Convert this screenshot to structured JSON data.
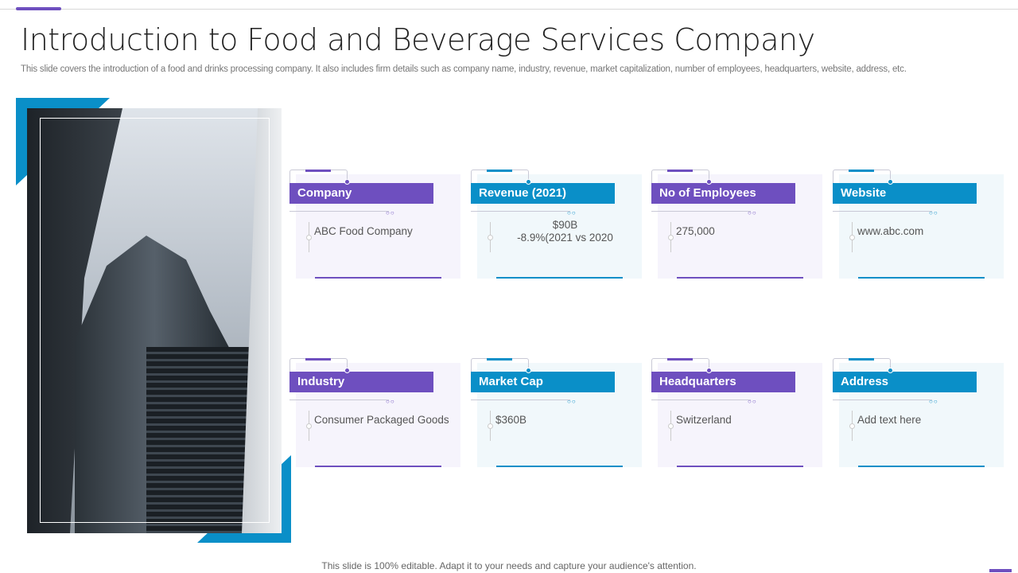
{
  "title": "Introduction to Food and Beverage Services Company",
  "subtitle": "This slide covers the introduction of a food and drinks processing company. It also includes firm details such as company name, industry, revenue, market capitalization, number of employees, headquarters, website, address, etc.",
  "footer": "This slide is 100% editable. Adapt it to your needs and capture your audience's attention.",
  "colors": {
    "purple": "#6e4fbf",
    "blue": "#0a8fc8"
  },
  "image": "office-building-photo",
  "cards": [
    {
      "label": "Company",
      "value": "ABC Food Company"
    },
    {
      "label": "Revenue (2021)",
      "value": "$90B",
      "value2": "-8.9%(2021 vs 2020"
    },
    {
      "label": "No of Employees",
      "value": "275,000"
    },
    {
      "label": "Website",
      "value": "www.abc.com"
    },
    {
      "label": "Industry",
      "value": "Consumer Packaged Goods"
    },
    {
      "label": "Market Cap",
      "value": "$360B"
    },
    {
      "label": "Headquarters",
      "value": "Switzerland"
    },
    {
      "label": "Address",
      "value": "Add text here"
    }
  ]
}
